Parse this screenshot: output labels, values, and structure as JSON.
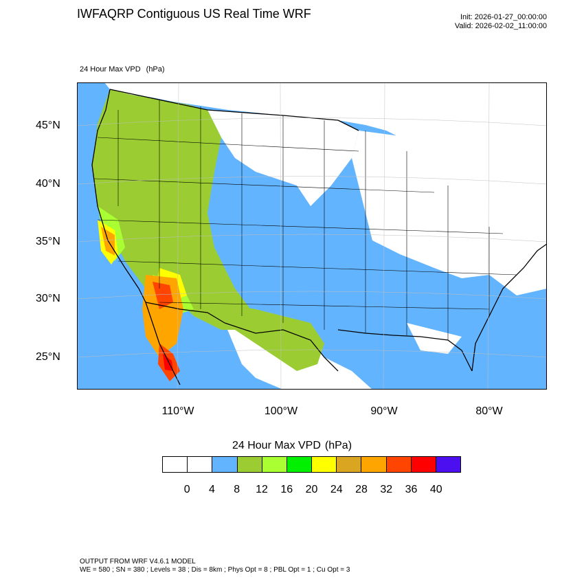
{
  "header": {
    "title": "IWFAQRP Contiguous US Real Time WRF",
    "init": "Init: 2026-01-27_00:00:00",
    "valid": "Valid: 2026-02-02_11:00:00"
  },
  "field": {
    "name": "24 Hour Max VPD",
    "unit": "(hPa)"
  },
  "axes": {
    "lat_labels": [
      "45°N",
      "40°N",
      "35°N",
      "30°N",
      "25°N"
    ],
    "lon_labels": [
      "110°W",
      "100°W",
      "90°W",
      "80°W"
    ]
  },
  "legend": {
    "title": "24 Hour Max VPD",
    "unit": "(hPa)",
    "colors": [
      "#ffffff",
      "#ffffff",
      "#63b4ff",
      "#9bcd32",
      "#aaff32",
      "#00f000",
      "#ffff00",
      "#daa520",
      "#ffa500",
      "#ff4500",
      "#ff0000",
      "#4b0ff0"
    ],
    "tick_labels": [
      "0",
      "4",
      "8",
      "12",
      "16",
      "20",
      "24",
      "28",
      "32",
      "36",
      "40"
    ]
  },
  "footer": {
    "line1": "OUTPUT FROM WRF V4.6.1 MODEL",
    "line2": "WE = 580 ; SN = 380 ; Levels = 38 ; Dis = 8km ; Phys Opt = 8 ; PBL Opt = 1 ; Cu Opt = 3"
  }
}
